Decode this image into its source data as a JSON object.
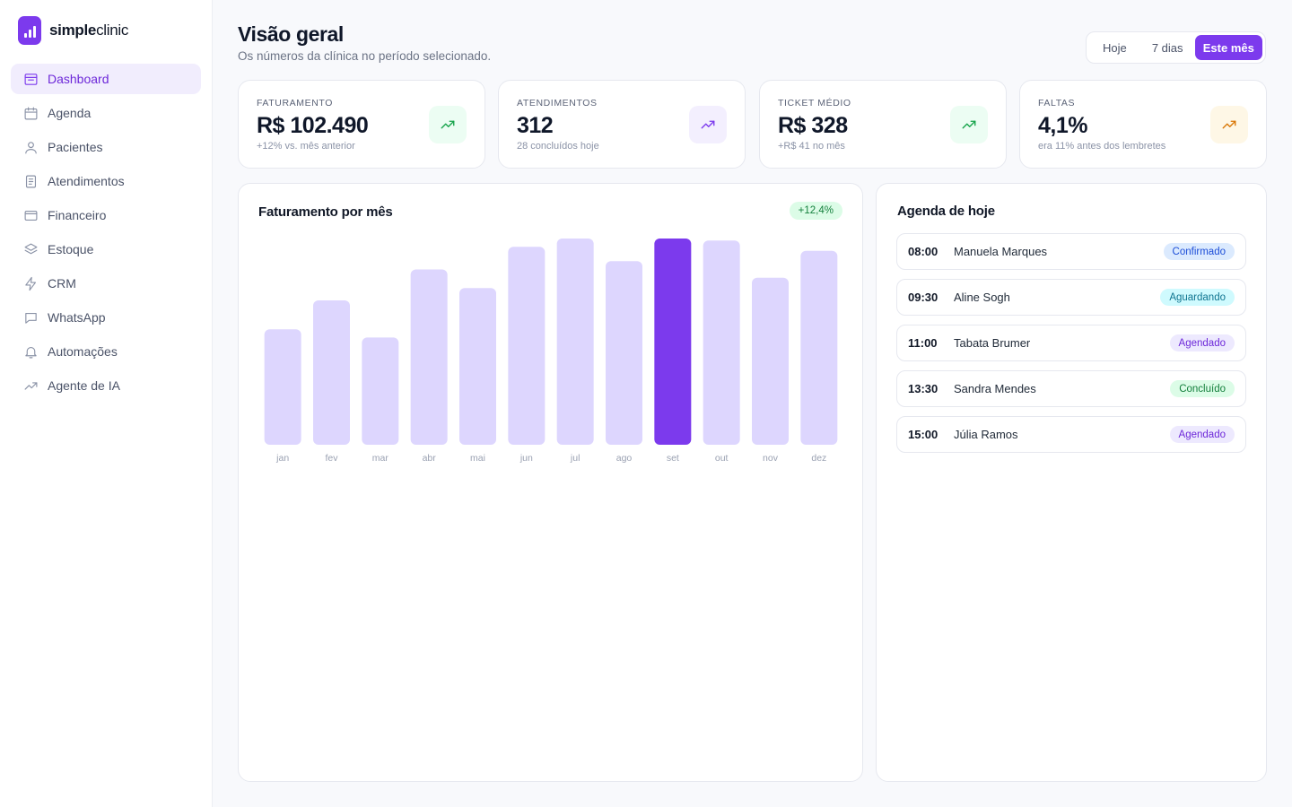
{
  "brand": {
    "name_bold": "simple",
    "name_light": "clinic"
  },
  "sidebar": {
    "items": [
      {
        "label": "Dashboard",
        "icon": "dashboard-icon",
        "active": true
      },
      {
        "label": "Agenda",
        "icon": "calendar-icon"
      },
      {
        "label": "Pacientes",
        "icon": "user-icon"
      },
      {
        "label": "Atendimentos",
        "icon": "clipboard-icon"
      },
      {
        "label": "Financeiro",
        "icon": "wallet-icon"
      },
      {
        "label": "Estoque",
        "icon": "layers-icon"
      },
      {
        "label": "CRM",
        "icon": "lightning-icon"
      },
      {
        "label": "WhatsApp",
        "icon": "chat-icon"
      },
      {
        "label": "Automações",
        "icon": "bell-icon"
      },
      {
        "label": "Agente de IA",
        "icon": "trend-icon"
      }
    ]
  },
  "header": {
    "title": "Visão geral",
    "subtitle": "Os números da clínica no período selecionado."
  },
  "period_selector": {
    "options": [
      "Hoje",
      "7 dias",
      "Este mês"
    ],
    "selected": "Este mês"
  },
  "kpis": [
    {
      "label": "FATURAMENTO",
      "value": "R$ 102.490",
      "sub": "+12% vs. mês anterior",
      "icon": "trending-up-icon",
      "color": "#16a34a",
      "bg": "#ecfdf3"
    },
    {
      "label": "ATENDIMENTOS",
      "value": "312",
      "sub": "28 concluídos hoje",
      "icon": "trending-up-icon",
      "color": "#7c3aed",
      "bg": "#f3effe"
    },
    {
      "label": "TICKET MÉDIO",
      "value": "R$ 328",
      "sub": "+R$ 41 no mês",
      "icon": "trending-up-icon",
      "color": "#16a34a",
      "bg": "#ecfdf3"
    },
    {
      "label": "FALTAS",
      "value": "4,1%",
      "sub": "era 11% antes dos lembretes",
      "icon": "trending-up-icon",
      "color": "#d97706",
      "bg": "#fef7e6"
    }
  ],
  "chart": {
    "title": "Faturamento por mês",
    "badge": "+12,4%"
  },
  "chart_data": {
    "type": "bar",
    "categories": [
      "jan",
      "fev",
      "mar",
      "abr",
      "mai",
      "jun",
      "jul",
      "ago",
      "set",
      "out",
      "nov",
      "dez"
    ],
    "values": [
      56,
      70,
      52,
      85,
      76,
      96,
      100,
      89,
      100,
      99,
      81,
      94
    ],
    "highlight": "set",
    "ylim": [
      0,
      100
    ],
    "colors": {
      "bar": "#ddd6fe",
      "highlight": "#7c3aed",
      "tick": "#9aa1b2"
    }
  },
  "agenda": {
    "title": "Agenda de hoje",
    "items": [
      {
        "time": "08:00",
        "name": "Manuela Marques",
        "status": "Confirmado",
        "status_color": "#1d4ed8",
        "status_bg": "#dbeafe"
      },
      {
        "time": "09:30",
        "name": "Aline Sogh",
        "status": "Aguardando",
        "status_color": "#0e7490",
        "status_bg": "#cffafe"
      },
      {
        "time": "11:00",
        "name": "Tabata Brumer",
        "status": "Agendado",
        "status_color": "#6d28d9",
        "status_bg": "#ede9fe"
      },
      {
        "time": "13:30",
        "name": "Sandra Mendes",
        "status": "Concluído",
        "status_color": "#15803d",
        "status_bg": "#dcfce7"
      },
      {
        "time": "15:00",
        "name": "Júlia Ramos",
        "status": "Agendado",
        "status_color": "#6d28d9",
        "status_bg": "#ede9fe"
      }
    ]
  }
}
